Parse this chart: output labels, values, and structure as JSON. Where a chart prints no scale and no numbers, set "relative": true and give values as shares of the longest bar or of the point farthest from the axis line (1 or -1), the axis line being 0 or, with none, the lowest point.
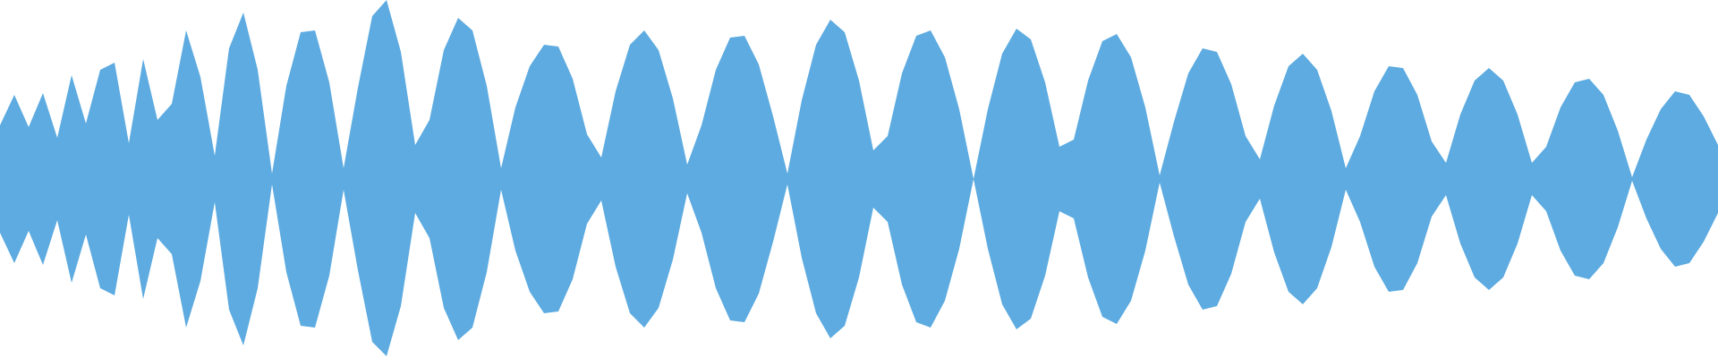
{
  "chart_data": {
    "type": "area",
    "relative": true,
    "tick_labels": false,
    "categories": [
      null,
      null,
      null,
      null,
      null,
      null,
      null,
      null,
      null,
      null,
      null,
      null,
      null,
      null,
      null,
      null,
      null,
      null,
      null,
      null,
      null,
      null,
      null,
      null,
      null,
      null,
      null,
      null,
      null,
      null,
      null,
      null,
      null,
      null,
      null,
      null,
      null,
      null,
      null,
      null,
      null,
      null,
      null,
      null,
      null,
      null,
      null,
      null,
      null,
      null,
      null,
      null,
      null,
      null,
      null,
      null,
      null,
      null,
      null,
      null,
      null,
      null,
      null,
      null,
      null,
      null,
      null,
      null,
      null,
      null,
      null,
      null,
      null,
      null,
      null,
      null,
      null,
      null,
      null,
      null,
      null,
      null,
      null,
      null,
      null,
      null,
      null,
      null,
      null,
      null,
      null,
      null,
      null,
      null,
      null,
      null,
      null,
      null,
      null,
      null,
      null,
      null,
      null,
      null,
      null,
      null,
      null,
      null,
      null,
      null,
      null,
      null,
      null,
      null,
      null,
      null,
      null,
      null,
      null,
      null,
      null
    ],
    "series": [
      {
        "color": "#5dabe0",
        "values": [
          0.3,
          0.47,
          0.29,
          0.48,
          0.23,
          0.58,
          0.31,
          0.61,
          0.65,
          0.2,
          0.67,
          0.33,
          0.42,
          0.83,
          0.57,
          0.13,
          0.73,
          0.93,
          0.61,
          0.03,
          0.52,
          0.82,
          0.83,
          0.54,
          0.06,
          0.51,
          0.91,
          1,
          0.71,
          0.19,
          0.33,
          0.72,
          0.9,
          0.83,
          0.52,
          0.06,
          0.4,
          0.63,
          0.75,
          0.74,
          0.56,
          0.25,
          0.12,
          0.49,
          0.75,
          0.83,
          0.72,
          0.45,
          0.08,
          0.3,
          0.61,
          0.79,
          0.8,
          0.64,
          0.35,
          0.03,
          0.44,
          0.75,
          0.89,
          0.82,
          0.55,
          0.16,
          0.24,
          0.59,
          0.8,
          0.83,
          0.68,
          0.39,
          0,
          0.39,
          0.7,
          0.84,
          0.78,
          0.54,
          0.18,
          0.22,
          0.55,
          0.77,
          0.81,
          0.68,
          0.4,
          0.02,
          0.32,
          0.59,
          0.73,
          0.71,
          0.53,
          0.24,
          0.11,
          0.41,
          0.63,
          0.7,
          0.61,
          0.38,
          0.06,
          0.24,
          0.49,
          0.63,
          0.62,
          0.47,
          0.21,
          0.09,
          0.36,
          0.55,
          0.62,
          0.55,
          0.36,
          0.09,
          0.18,
          0.4,
          0.54,
          0.56,
          0.47,
          0.27,
          0.01,
          0.22,
          0.39,
          0.49,
          0.47,
          0.35,
          0.19
        ]
      },
      {
        "color": "#5dabe0",
        "values": [
          -0.3,
          -0.47,
          -0.29,
          -0.48,
          -0.23,
          -0.58,
          -0.31,
          -0.61,
          -0.65,
          -0.2,
          -0.67,
          -0.33,
          -0.42,
          -0.83,
          -0.57,
          -0.13,
          -0.73,
          -0.93,
          -0.61,
          -0.03,
          -0.52,
          -0.82,
          -0.83,
          -0.54,
          -0.06,
          -0.51,
          -0.91,
          -0.99,
          -0.71,
          -0.19,
          -0.33,
          -0.72,
          -0.9,
          -0.83,
          -0.52,
          -0.06,
          -0.4,
          -0.63,
          -0.75,
          -0.74,
          -0.56,
          -0.25,
          -0.12,
          -0.49,
          -0.75,
          -0.83,
          -0.72,
          -0.45,
          -0.08,
          -0.3,
          -0.61,
          -0.79,
          -0.8,
          -0.64,
          -0.35,
          -0.03,
          -0.44,
          -0.75,
          -0.89,
          -0.82,
          -0.55,
          -0.16,
          -0.24,
          -0.59,
          -0.8,
          -0.83,
          -0.68,
          -0.39,
          0,
          -0.39,
          -0.7,
          -0.84,
          -0.78,
          -0.54,
          -0.18,
          -0.22,
          -0.55,
          -0.77,
          -0.81,
          -0.68,
          -0.4,
          -0.02,
          -0.32,
          -0.59,
          -0.73,
          -0.71,
          -0.53,
          -0.24,
          -0.11,
          -0.41,
          -0.63,
          -0.7,
          -0.61,
          -0.38,
          -0.06,
          -0.24,
          -0.49,
          -0.63,
          -0.62,
          -0.47,
          -0.21,
          -0.09,
          -0.36,
          -0.55,
          -0.62,
          -0.55,
          -0.36,
          -0.09,
          -0.18,
          -0.4,
          -0.54,
          -0.56,
          -0.47,
          -0.27,
          -0.01,
          -0.22,
          -0.39,
          -0.49,
          -0.47,
          -0.35,
          -0.19
        ]
      }
    ]
  }
}
